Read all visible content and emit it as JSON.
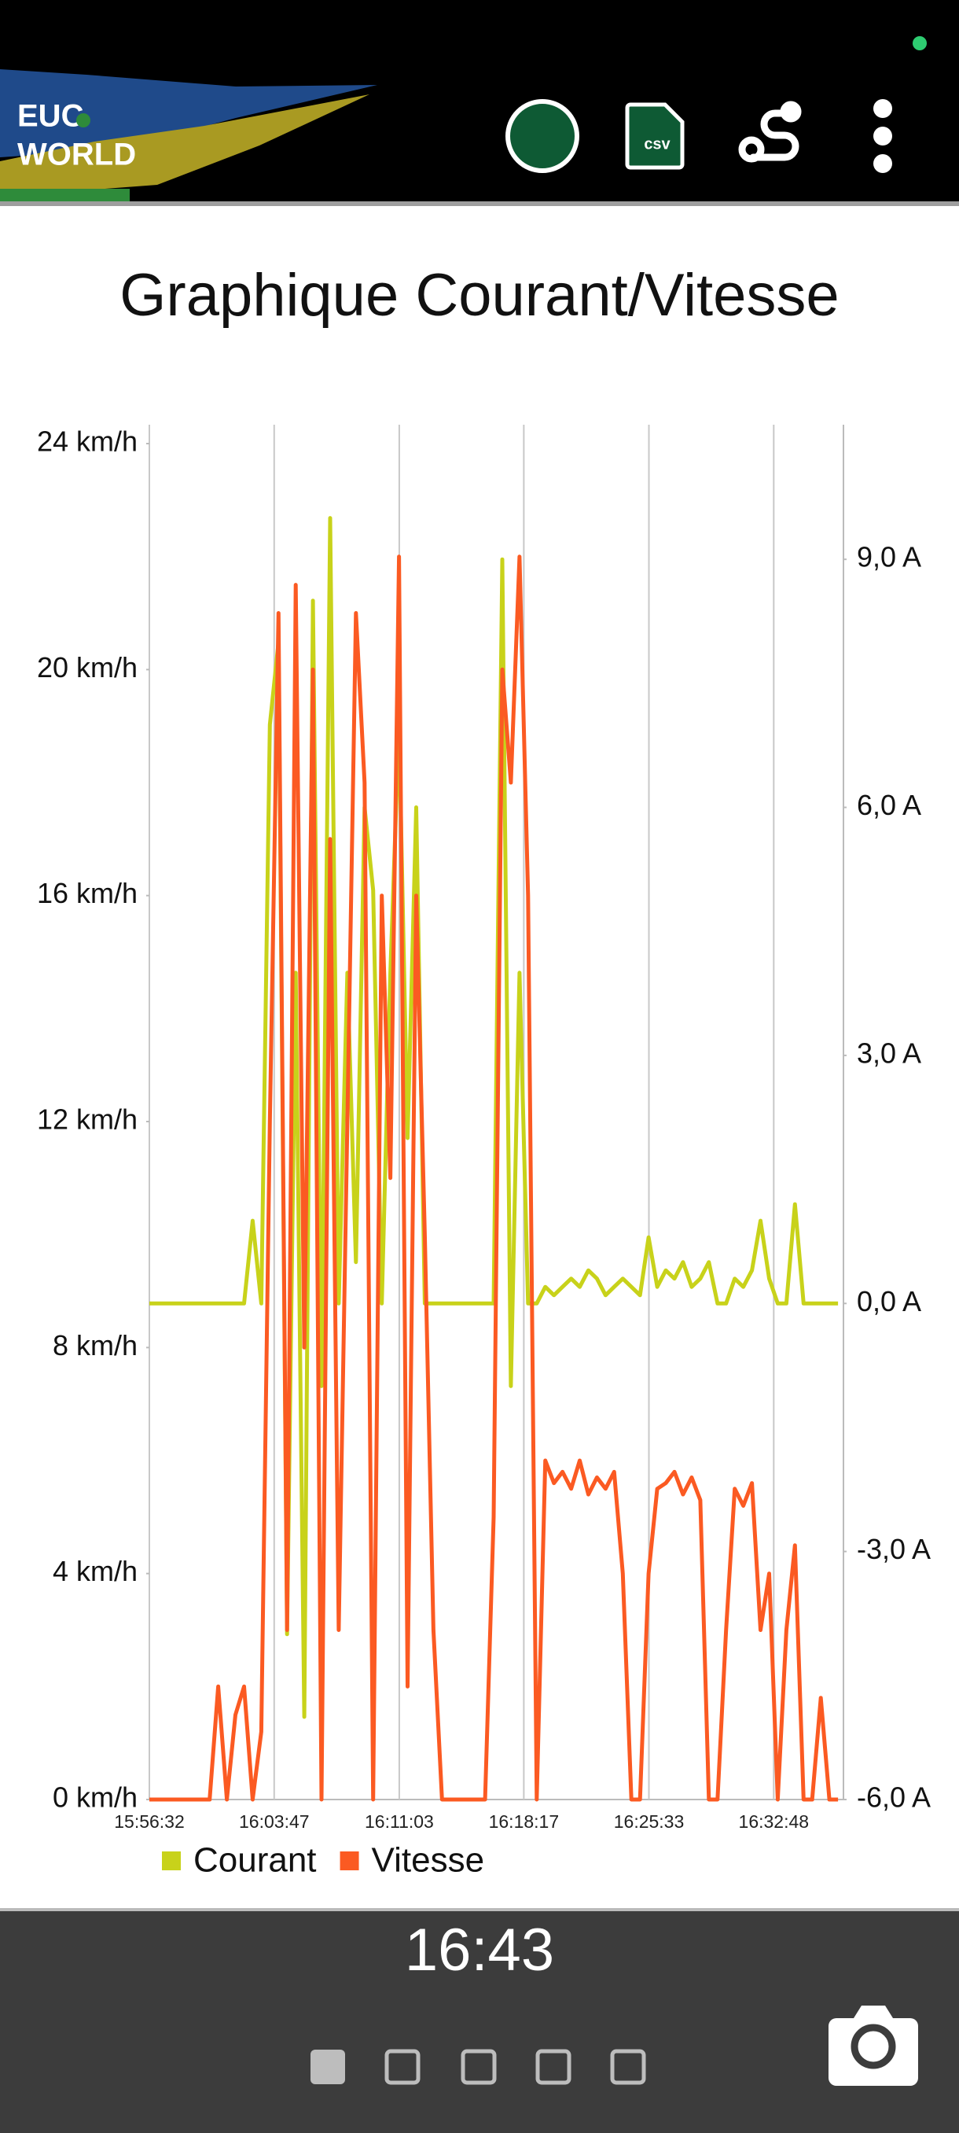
{
  "app_bar": {
    "logo": [
      "EUC",
      "WORLD"
    ],
    "csv_icon": "csv"
  },
  "chart_data": {
    "type": "line",
    "title": "Graphique Courant/Vitesse",
    "x": [
      "15:56:32",
      "15:57:02",
      "15:57:32",
      "15:58:02",
      "15:58:32",
      "15:59:02",
      "15:59:32",
      "16:00:02",
      "16:00:32",
      "16:01:02",
      "16:01:32",
      "16:02:02",
      "16:02:32",
      "16:03:02",
      "16:03:32",
      "16:04:02",
      "16:04:32",
      "16:05:02",
      "16:05:32",
      "16:06:02",
      "16:06:32",
      "16:07:02",
      "16:07:32",
      "16:08:02",
      "16:08:32",
      "16:09:02",
      "16:09:32",
      "16:10:02",
      "16:10:32",
      "16:11:02",
      "16:11:32",
      "16:12:02",
      "16:12:32",
      "16:13:02",
      "16:13:32",
      "16:14:02",
      "16:14:32",
      "16:15:02",
      "16:15:32",
      "16:16:02",
      "16:16:32",
      "16:17:02",
      "16:17:32",
      "16:18:02",
      "16:18:32",
      "16:19:02",
      "16:19:32",
      "16:20:02",
      "16:20:32",
      "16:21:02",
      "16:21:32",
      "16:22:02",
      "16:22:32",
      "16:23:02",
      "16:23:32",
      "16:24:02",
      "16:24:32",
      "16:25:02",
      "16:25:32",
      "16:26:02",
      "16:26:32",
      "16:27:02",
      "16:27:32",
      "16:28:02",
      "16:28:32",
      "16:29:02",
      "16:29:32",
      "16:30:02",
      "16:30:32",
      "16:31:02",
      "16:31:32",
      "16:32:02",
      "16:32:32",
      "16:33:02",
      "16:33:32",
      "16:34:02",
      "16:34:32",
      "16:35:02",
      "16:35:32",
      "16:36:02",
      "16:36:32"
    ],
    "series": [
      {
        "name": "Courant",
        "color": "#c8d21a",
        "axis": "y2",
        "values": [
          0,
          0,
          0,
          0,
          0,
          0,
          0,
          0,
          0,
          0,
          0,
          0,
          1,
          0,
          7,
          8,
          -4,
          4,
          -5,
          8.5,
          -1,
          9.5,
          0,
          4,
          0.5,
          6,
          5,
          0,
          4,
          7,
          2,
          6,
          0,
          0,
          0,
          0,
          0,
          0,
          0,
          0,
          0,
          9,
          -1,
          4,
          0,
          0,
          0.2,
          0.1,
          0.2,
          0.3,
          0.2,
          0.4,
          0.3,
          0.1,
          0.2,
          0.3,
          0.2,
          0.1,
          0.8,
          0.2,
          0.4,
          0.3,
          0.5,
          0.2,
          0.3,
          0.5,
          0,
          0,
          0.3,
          0.2,
          0.4,
          1,
          0.3,
          0,
          0,
          1.2,
          0,
          0,
          0,
          0,
          0
        ]
      },
      {
        "name": "Vitesse",
        "color": "#fb5a22",
        "values": [
          0,
          0,
          0,
          0,
          0,
          0,
          0,
          0,
          2,
          0,
          1.5,
          2,
          0,
          1.2,
          12,
          21,
          3,
          21.5,
          8,
          20,
          0,
          17,
          3,
          12,
          21,
          18,
          0,
          16,
          11,
          22,
          2,
          16,
          10,
          3,
          0,
          0,
          0,
          0,
          0,
          0,
          5,
          20,
          18,
          22,
          16,
          0,
          6,
          5.6,
          5.8,
          5.5,
          6,
          5.4,
          5.7,
          5.5,
          5.8,
          4,
          0,
          0,
          4,
          5.5,
          5.6,
          5.8,
          5.4,
          5.7,
          5.3,
          0,
          0,
          3,
          5.5,
          5.2,
          5.6,
          3,
          4,
          0,
          3,
          4.5,
          0,
          0,
          1.8,
          0,
          0
        ]
      }
    ],
    "xlim": [
      "15:56:32",
      "16:36:51"
    ],
    "xticks": [
      "15:56:32",
      "16:03:47",
      "16:11:03",
      "16:18:17",
      "16:25:33",
      "16:32:48"
    ],
    "ylim": [
      0,
      24
    ],
    "yticks": [
      {
        "value": 0,
        "label": "0 km/h"
      },
      {
        "value": 4,
        "label": "4 km/h"
      },
      {
        "value": 8,
        "label": "8 km/h"
      },
      {
        "value": 12,
        "label": "12 km/h"
      },
      {
        "value": 16,
        "label": "16 km/h"
      },
      {
        "value": 20,
        "label": "20 km/h"
      },
      {
        "value": 24,
        "label": "24 km/h"
      }
    ],
    "y2lim": [
      -6,
      10.4
    ],
    "y2ticks": [
      {
        "value": -6,
        "label": "-6,0 A"
      },
      {
        "value": -3,
        "label": "-3,0 A"
      },
      {
        "value": 0,
        "label": "0,0 A"
      },
      {
        "value": 3,
        "label": "3,0 A"
      },
      {
        "value": 6,
        "label": "6,0 A"
      },
      {
        "value": 9,
        "label": "9,0 A"
      }
    ],
    "grid": true,
    "legend": "bottom"
  },
  "bottom_bar": {
    "time": "16:43"
  }
}
